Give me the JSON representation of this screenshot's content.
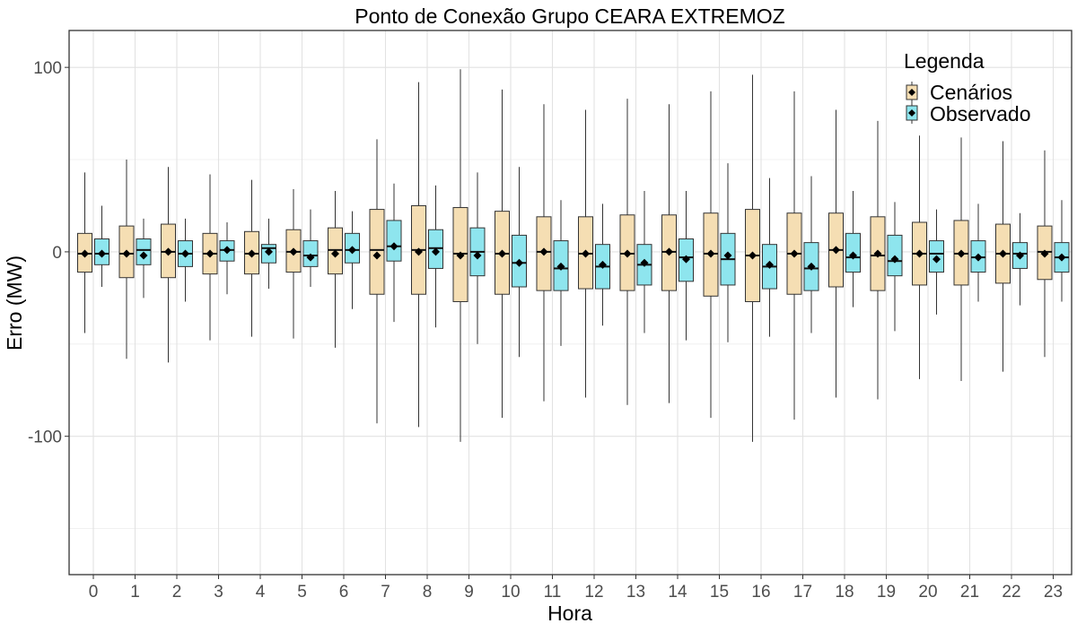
{
  "chart_data": {
    "type": "boxplot",
    "title": "Ponto de Conexão Grupo CEARA EXTREMOZ",
    "xlabel": "Hora",
    "ylabel": "Erro (MW)",
    "ylim": [
      -175,
      120
    ],
    "yticks": [
      -100,
      0,
      100
    ],
    "y_minor_ticks": [
      -150,
      -50,
      50
    ],
    "categories": [
      "0",
      "1",
      "2",
      "3",
      "4",
      "5",
      "6",
      "7",
      "8",
      "9",
      "10",
      "11",
      "12",
      "13",
      "14",
      "15",
      "16",
      "17",
      "18",
      "19",
      "20",
      "21",
      "22",
      "23"
    ],
    "grid": true,
    "legend": {
      "title": "Legenda",
      "position": "top-right"
    },
    "series": [
      {
        "name": "Cenários",
        "color": "#F5DEB3",
        "boxes": [
          {
            "whisker_low": -44,
            "q1": -11,
            "median": -1,
            "q3": 10,
            "whisker_high": 43,
            "mean": -1
          },
          {
            "whisker_low": -58,
            "q1": -14,
            "median": -1,
            "q3": 14,
            "whisker_high": 50,
            "mean": -1
          },
          {
            "whisker_low": -60,
            "q1": -14,
            "median": 0,
            "q3": 15,
            "whisker_high": 46,
            "mean": 0
          },
          {
            "whisker_low": -48,
            "q1": -12,
            "median": -1,
            "q3": 10,
            "whisker_high": 42,
            "mean": -1
          },
          {
            "whisker_low": -46,
            "q1": -12,
            "median": -1,
            "q3": 11,
            "whisker_high": 39,
            "mean": -1
          },
          {
            "whisker_low": -47,
            "q1": -11,
            "median": 0,
            "q3": 12,
            "whisker_high": 34,
            "mean": 0
          },
          {
            "whisker_low": -52,
            "q1": -12,
            "median": 1,
            "q3": 13,
            "whisker_high": 33,
            "mean": -1
          },
          {
            "whisker_low": -93,
            "q1": -23,
            "median": 1,
            "q3": 23,
            "whisker_high": 61,
            "mean": -2
          },
          {
            "whisker_low": -95,
            "q1": -23,
            "median": 1,
            "q3": 25,
            "whisker_high": 92,
            "mean": 0
          },
          {
            "whisker_low": -103,
            "q1": -27,
            "median": -1,
            "q3": 24,
            "whisker_high": 99,
            "mean": -2
          },
          {
            "whisker_low": -90,
            "q1": -23,
            "median": -1,
            "q3": 22,
            "whisker_high": 88,
            "mean": -1
          },
          {
            "whisker_low": -81,
            "q1": -21,
            "median": 0,
            "q3": 19,
            "whisker_high": 80,
            "mean": 0
          },
          {
            "whisker_low": -79,
            "q1": -20,
            "median": -1,
            "q3": 19,
            "whisker_high": 77,
            "mean": -1
          },
          {
            "whisker_low": -83,
            "q1": -21,
            "median": -1,
            "q3": 20,
            "whisker_high": 83,
            "mean": -1
          },
          {
            "whisker_low": -82,
            "q1": -21,
            "median": 0,
            "q3": 20,
            "whisker_high": 80,
            "mean": 0
          },
          {
            "whisker_low": -90,
            "q1": -24,
            "median": -1,
            "q3": 21,
            "whisker_high": 87,
            "mean": -1
          },
          {
            "whisker_low": -103,
            "q1": -27,
            "median": -2,
            "q3": 23,
            "whisker_high": 96,
            "mean": -2
          },
          {
            "whisker_low": -91,
            "q1": -23,
            "median": -1,
            "q3": 21,
            "whisker_high": 87,
            "mean": -1
          },
          {
            "whisker_low": -79,
            "q1": -19,
            "median": 1,
            "q3": 21,
            "whisker_high": 77,
            "mean": 1
          },
          {
            "whisker_low": -80,
            "q1": -21,
            "median": -2,
            "q3": 19,
            "whisker_high": 71,
            "mean": -1
          },
          {
            "whisker_low": -69,
            "q1": -18,
            "median": -1,
            "q3": 16,
            "whisker_high": 63,
            "mean": -1
          },
          {
            "whisker_low": -70,
            "q1": -18,
            "median": -1,
            "q3": 17,
            "whisker_high": 62,
            "mean": -1
          },
          {
            "whisker_low": -65,
            "q1": -17,
            "median": -1,
            "q3": 15,
            "whisker_high": 60,
            "mean": -1
          },
          {
            "whisker_low": -57,
            "q1": -15,
            "median": 0,
            "q3": 14,
            "whisker_high": 55,
            "mean": -1
          }
        ]
      },
      {
        "name": "Observado",
        "color": "#8EE5EE",
        "boxes": [
          {
            "whisker_low": -19,
            "q1": -7,
            "median": -1,
            "q3": 7,
            "whisker_high": 25,
            "mean": -1
          },
          {
            "whisker_low": -25,
            "q1": -7,
            "median": 1,
            "q3": 7,
            "whisker_high": 18,
            "mean": -2
          },
          {
            "whisker_low": -27,
            "q1": -8,
            "median": -1,
            "q3": 6,
            "whisker_high": 18,
            "mean": -1
          },
          {
            "whisker_low": -23,
            "q1": -5,
            "median": 1,
            "q3": 6,
            "whisker_high": 16,
            "mean": 1
          },
          {
            "whisker_low": -20,
            "q1": -6,
            "median": 2,
            "q3": 4,
            "whisker_high": 18,
            "mean": 0
          },
          {
            "whisker_low": -19,
            "q1": -8,
            "median": -2,
            "q3": 6,
            "whisker_high": 23,
            "mean": -3
          },
          {
            "whisker_low": -31,
            "q1": -6,
            "median": 1,
            "q3": 10,
            "whisker_high": 22,
            "mean": 1
          },
          {
            "whisker_low": -38,
            "q1": -5,
            "median": 3,
            "q3": 17,
            "whisker_high": 37,
            "mean": 3
          },
          {
            "whisker_low": -41,
            "q1": -9,
            "median": 2,
            "q3": 12,
            "whisker_high": 36,
            "mean": 0
          },
          {
            "whisker_low": -50,
            "q1": -13,
            "median": 0,
            "q3": 13,
            "whisker_high": 43,
            "mean": -2
          },
          {
            "whisker_low": -57,
            "q1": -19,
            "median": -6,
            "q3": 9,
            "whisker_high": 46,
            "mean": -6
          },
          {
            "whisker_low": -51,
            "q1": -21,
            "median": -9,
            "q3": 6,
            "whisker_high": 28,
            "mean": -8
          },
          {
            "whisker_low": -40,
            "q1": -20,
            "median": -8,
            "q3": 4,
            "whisker_high": 26,
            "mean": -7
          },
          {
            "whisker_low": -44,
            "q1": -18,
            "median": -7,
            "q3": 4,
            "whisker_high": 33,
            "mean": -6
          },
          {
            "whisker_low": -48,
            "q1": -16,
            "median": -3,
            "q3": 7,
            "whisker_high": 33,
            "mean": -4
          },
          {
            "whisker_low": -49,
            "q1": -18,
            "median": -4,
            "q3": 10,
            "whisker_high": 48,
            "mean": -2
          },
          {
            "whisker_low": -46,
            "q1": -20,
            "median": -8,
            "q3": 4,
            "whisker_high": 40,
            "mean": -7
          },
          {
            "whisker_low": -44,
            "q1": -21,
            "median": -9,
            "q3": 5,
            "whisker_high": 41,
            "mean": -8
          },
          {
            "whisker_low": -30,
            "q1": -11,
            "median": -3,
            "q3": 10,
            "whisker_high": 33,
            "mean": -2
          },
          {
            "whisker_low": -43,
            "q1": -13,
            "median": -5,
            "q3": 9,
            "whisker_high": 27,
            "mean": -4
          },
          {
            "whisker_low": -34,
            "q1": -11,
            "median": -1,
            "q3": 6,
            "whisker_high": 23,
            "mean": -4
          },
          {
            "whisker_low": -27,
            "q1": -11,
            "median": -3,
            "q3": 6,
            "whisker_high": 26,
            "mean": -3
          },
          {
            "whisker_low": -29,
            "q1": -9,
            "median": -1,
            "q3": 5,
            "whisker_high": 21,
            "mean": -2
          },
          {
            "whisker_low": -27,
            "q1": -11,
            "median": -3,
            "q3": 5,
            "whisker_high": 28,
            "mean": -3
          }
        ]
      }
    ]
  }
}
